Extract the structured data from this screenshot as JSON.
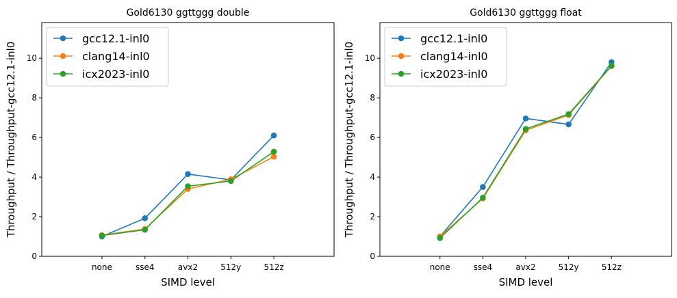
{
  "chart_data": [
    {
      "type": "line",
      "title": "Gold6130 ggttggg double",
      "xlabel": "SIMD level",
      "ylabel": "Throughput / Throughput-gcc12.1-inl0",
      "categories": [
        "none",
        "sse4",
        "avx2",
        "512y",
        "512z"
      ],
      "ylim": [
        0,
        11.8
      ],
      "yticks": [
        "0",
        "2",
        "4",
        "6",
        "8",
        "10"
      ],
      "grid": false,
      "legend_position": "top-left",
      "series": [
        {
          "name": "gcc12.1-inl0",
          "color": "#1f77b4",
          "values": [
            1.0,
            1.92,
            4.15,
            3.86,
            6.1
          ]
        },
        {
          "name": "clang14-inl0",
          "color": "#ff7f0e",
          "values": [
            1.07,
            1.38,
            3.4,
            3.89,
            5.03
          ]
        },
        {
          "name": "icx2023-inl0",
          "color": "#2ca02c",
          "values": [
            1.05,
            1.34,
            3.54,
            3.8,
            5.28
          ]
        }
      ]
    },
    {
      "type": "line",
      "title": "Gold6130 ggttggg float",
      "xlabel": "SIMD level",
      "ylabel": "Throughput / Throughput-gcc12.1-inl0",
      "categories": [
        "none",
        "sse4",
        "avx2",
        "512y",
        "512z"
      ],
      "ylim": [
        0,
        11.8
      ],
      "yticks": [
        "0",
        "2",
        "4",
        "6",
        "8",
        "10"
      ],
      "grid": false,
      "legend_position": "top-left",
      "series": [
        {
          "name": "gcc12.1-inl0",
          "color": "#1f77b4",
          "values": [
            1.0,
            3.5,
            6.96,
            6.66,
            9.8
          ]
        },
        {
          "name": "clang14-inl0",
          "color": "#ff7f0e",
          "values": [
            1.0,
            2.92,
            6.36,
            7.13,
            9.6
          ]
        },
        {
          "name": "icx2023-inl0",
          "color": "#2ca02c",
          "values": [
            0.92,
            2.96,
            6.43,
            7.18,
            9.62
          ]
        }
      ]
    }
  ]
}
